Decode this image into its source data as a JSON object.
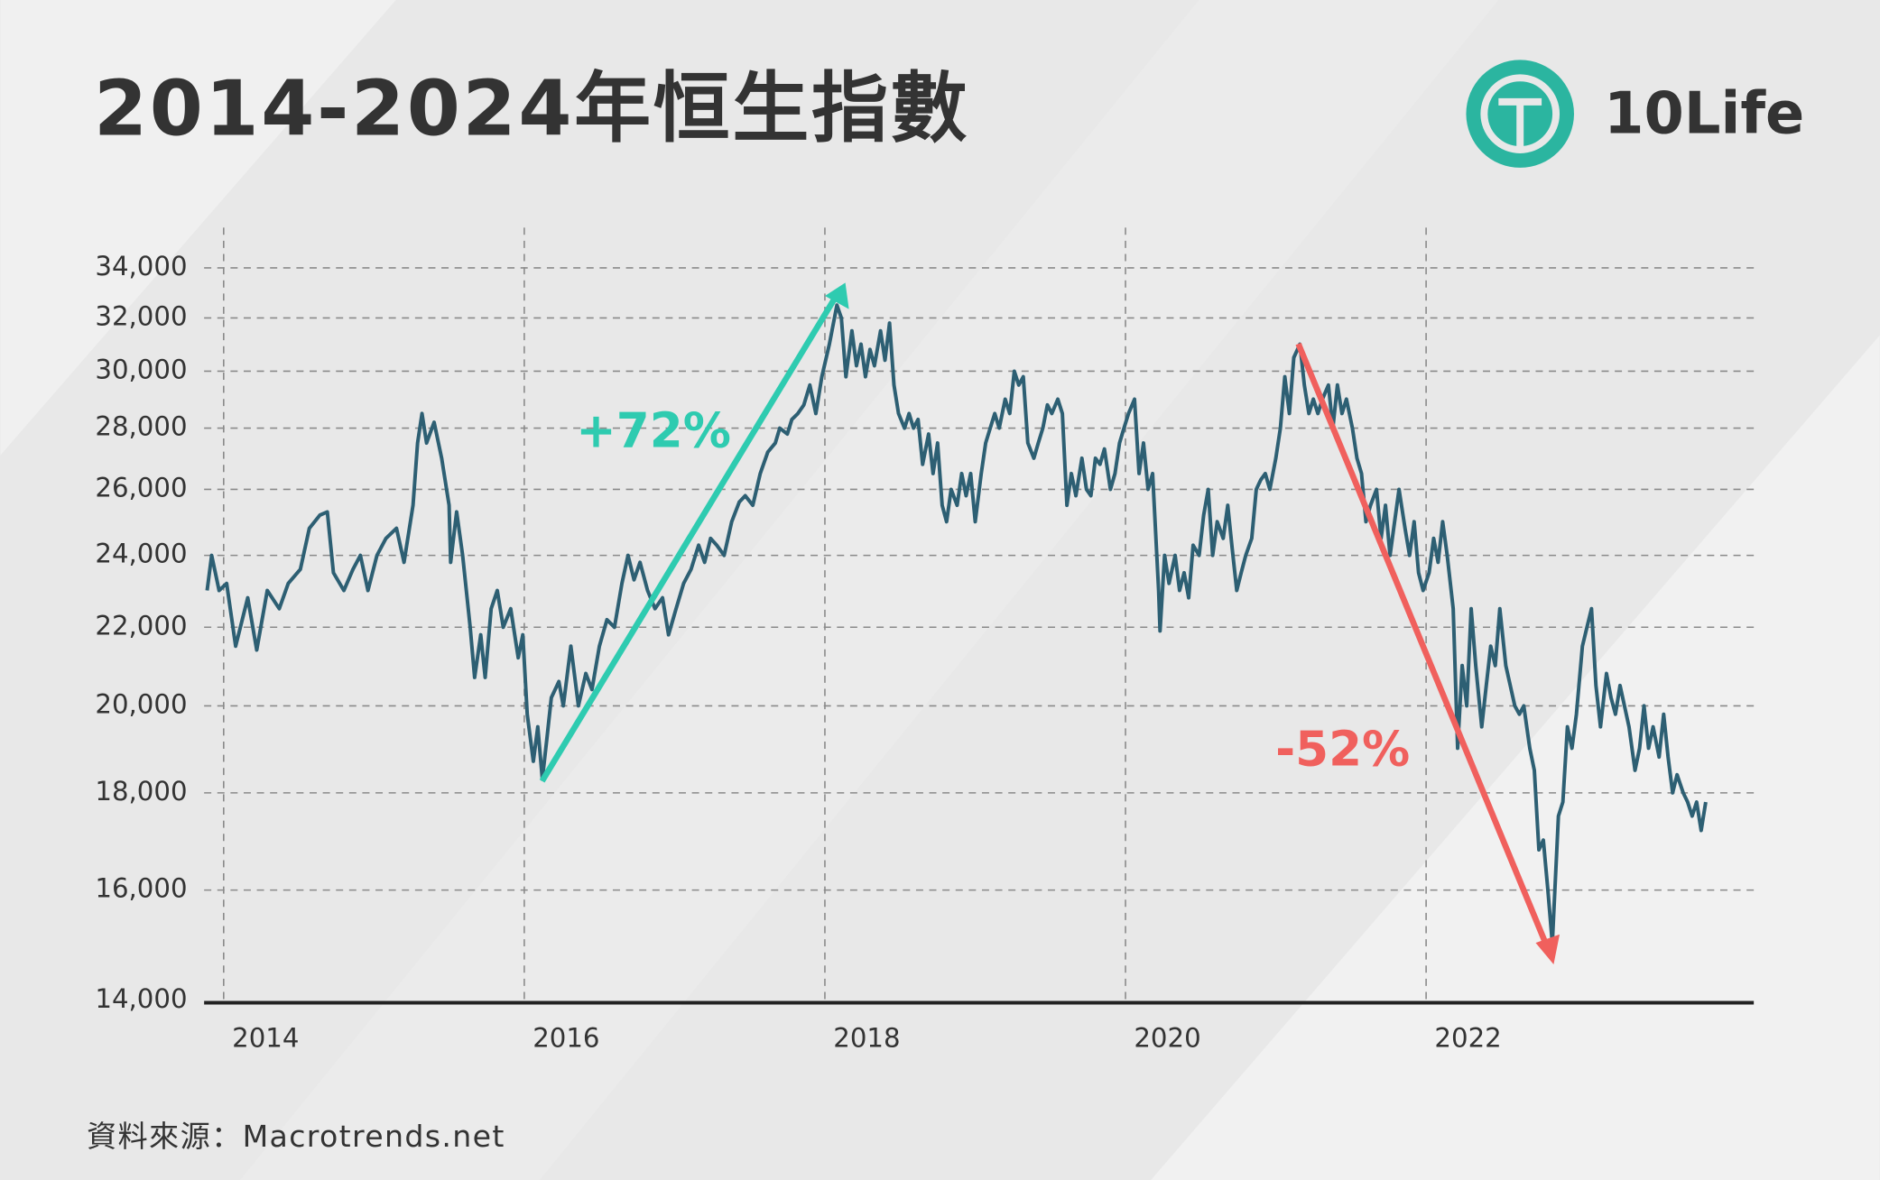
{
  "chart_data": {
    "type": "line",
    "title": "2014-2024年恒生指數",
    "logo": "10Life",
    "source": "資料來源：Macrotrends.net",
    "annotations": [
      {
        "text": "+72%",
        "color": "#2ecbb0"
      },
      {
        "text": "-52%",
        "color": "#f0605d"
      }
    ],
    "log_scale": true,
    "grid": true,
    "xlim": [
      2013.87,
      2024.18
    ],
    "xticks": [
      2014,
      2016,
      2018,
      2020,
      2022
    ],
    "ylim": [
      14000,
      35700
    ],
    "yticks": [
      {
        "value": 14000,
        "label": "14,000"
      },
      {
        "value": 16000,
        "label": "16,000"
      },
      {
        "value": 18000,
        "label": "18,000"
      },
      {
        "value": 20000,
        "label": "20,000"
      },
      {
        "value": 22000,
        "label": "22,000"
      },
      {
        "value": 24000,
        "label": "24,000"
      },
      {
        "value": 26000,
        "label": "26,000"
      },
      {
        "value": 28000,
        "label": "28,000"
      },
      {
        "value": 30000,
        "label": "30,000"
      },
      {
        "value": 32000,
        "label": "32,000"
      },
      {
        "value": 34000,
        "label": "34,000"
      }
    ],
    "series": [
      {
        "color": "#2d5f73",
        "x": [
          2013.89,
          2013.92,
          2013.97,
          2014.02,
          2014.08,
          2014.16,
          2014.22,
          2014.29,
          2014.37,
          2014.43,
          2014.51,
          2014.57,
          2014.64,
          2014.69,
          2014.73,
          2014.8,
          2014.86,
          2014.91,
          2014.96,
          2015.02,
          2015.08,
          2015.15,
          2015.2,
          2015.26,
          2015.29,
          2015.32,
          2015.35,
          2015.4,
          2015.45,
          2015.5,
          2015.51,
          2015.55,
          2015.59,
          2015.64,
          2015.67,
          2015.71,
          2015.74,
          2015.78,
          2015.82,
          2015.86,
          2015.91,
          2015.96,
          2015.99,
          2016.02,
          2016.06,
          2016.09,
          2016.12,
          2016.15,
          2016.18,
          2016.23,
          2016.26,
          2016.31,
          2016.36,
          2016.41,
          2016.45,
          2016.5,
          2016.55,
          2016.6,
          2016.65,
          2016.69,
          2016.73,
          2016.77,
          2016.82,
          2016.87,
          2016.92,
          2016.96,
          2017.01,
          2017.06,
          2017.11,
          2017.16,
          2017.2,
          2017.24,
          2017.28,
          2017.33,
          2017.38,
          2017.43,
          2017.47,
          2017.52,
          2017.57,
          2017.62,
          2017.67,
          2017.7,
          2017.75,
          2017.78,
          2017.82,
          2017.86,
          2017.9,
          2017.94,
          2017.98,
          2018.03,
          2018.08,
          2018.11,
          2018.14,
          2018.18,
          2018.21,
          2018.24,
          2018.27,
          2018.3,
          2018.33,
          2018.37,
          2018.4,
          2018.43,
          2018.46,
          2018.49,
          2018.53,
          2018.56,
          2018.59,
          2018.62,
          2018.65,
          2018.69,
          2018.72,
          2018.75,
          2018.78,
          2018.81,
          2018.84,
          2018.88,
          2018.91,
          2018.94,
          2018.97,
          2019.0,
          2019.04,
          2019.07,
          2019.1,
          2019.13,
          2019.16,
          2019.2,
          2019.23,
          2019.26,
          2019.29,
          2019.32,
          2019.35,
          2019.39,
          2019.42,
          2019.45,
          2019.48,
          2019.51,
          2019.55,
          2019.58,
          2019.61,
          2019.64,
          2019.67,
          2019.71,
          2019.74,
          2019.77,
          2019.8,
          2019.83,
          2019.86,
          2019.9,
          2019.93,
          2019.96,
          2019.99,
          2020.02,
          2020.06,
          2020.09,
          2020.12,
          2020.15,
          2020.18,
          2020.22,
          2020.23,
          2020.26,
          2020.29,
          2020.33,
          2020.36,
          2020.39,
          2020.42,
          2020.45,
          2020.49,
          2020.52,
          2020.55,
          2020.58,
          2020.61,
          2020.65,
          2020.68,
          2020.71,
          2020.74,
          2020.77,
          2020.8,
          2020.84,
          2020.87,
          2020.9,
          2020.93,
          2020.96,
          2021.0,
          2021.03,
          2021.06,
          2021.09,
          2021.12,
          2021.16,
          2021.19,
          2021.22,
          2021.25,
          2021.28,
          2021.31,
          2021.35,
          2021.38,
          2021.41,
          2021.44,
          2021.47,
          2021.51,
          2021.54,
          2021.57,
          2021.6,
          2021.63,
          2021.67,
          2021.7,
          2021.73,
          2021.76,
          2021.79,
          2021.82,
          2021.86,
          2021.89,
          2021.92,
          2021.95,
          2021.98,
          2022.02,
          2022.05,
          2022.08,
          2022.11,
          2022.14,
          2022.18,
          2022.21,
          2022.24,
          2022.27,
          2022.3,
          2022.33,
          2022.37,
          2022.4,
          2022.43,
          2022.46,
          2022.49,
          2022.53,
          2022.56,
          2022.59,
          2022.62,
          2022.65,
          2022.69,
          2022.72,
          2022.75,
          2022.78,
          2022.81,
          2022.84,
          2022.88,
          2022.91,
          2022.94,
          2022.97,
          2023.0,
          2023.04,
          2023.07,
          2023.1,
          2023.13,
          2023.16,
          2023.2,
          2023.23,
          2023.26,
          2023.29,
          2023.32,
          2023.35,
          2023.39,
          2023.42,
          2023.45,
          2023.48,
          2023.51,
          2023.55,
          2023.58,
          2023.61,
          2023.64,
          2023.67,
          2023.71,
          2023.74,
          2023.77,
          2023.8,
          2023.83,
          2023.86
        ],
        "values": [
          23000,
          24000,
          23000,
          23200,
          21500,
          22800,
          21400,
          23000,
          22500,
          23200,
          23600,
          24800,
          25200,
          25300,
          23500,
          23000,
          23600,
          24000,
          23000,
          24000,
          24500,
          24800,
          23800,
          25500,
          27500,
          28500,
          27500,
          28200,
          27000,
          25500,
          23800,
          25300,
          24000,
          22000,
          20700,
          21800,
          20700,
          22500,
          23000,
          22000,
          22500,
          21200,
          21800,
          19800,
          18700,
          19500,
          18300,
          19200,
          20200,
          20600,
          20000,
          21500,
          20000,
          20800,
          20400,
          21500,
          22200,
          22000,
          23200,
          24000,
          23300,
          23800,
          23000,
          22500,
          22800,
          21800,
          22500,
          23200,
          23600,
          24300,
          23800,
          24500,
          24300,
          24000,
          25000,
          25600,
          25800,
          25500,
          26500,
          27200,
          27500,
          28000,
          27800,
          28300,
          28500,
          28800,
          29500,
          28500,
          29800,
          31000,
          32500,
          32000,
          29800,
          31500,
          30200,
          31000,
          29800,
          30800,
          30200,
          31500,
          30400,
          31800,
          29500,
          28500,
          28000,
          28500,
          28000,
          28300,
          26800,
          27800,
          26500,
          27500,
          25500,
          25000,
          26000,
          25500,
          26500,
          25800,
          26500,
          25000,
          26500,
          27500,
          28000,
          28500,
          28000,
          29000,
          28500,
          30000,
          29500,
          29800,
          27500,
          27000,
          27500,
          28000,
          28800,
          28500,
          29000,
          28500,
          25500,
          26500,
          25800,
          27000,
          26000,
          25800,
          27000,
          26800,
          27300,
          26000,
          26500,
          27500,
          28000,
          28500,
          29000,
          26500,
          27500,
          26000,
          26500,
          23000,
          21900,
          24000,
          23200,
          24000,
          23000,
          23500,
          22800,
          24300,
          24000,
          25200,
          26000,
          24000,
          25000,
          24500,
          25500,
          24200,
          23000,
          23500,
          24000,
          24500,
          26000,
          26300,
          26500,
          26000,
          27000,
          28000,
          29800,
          28500,
          30500,
          31000,
          29500,
          28500,
          29000,
          28500,
          29000,
          29500,
          28000,
          29500,
          28500,
          29000,
          28000,
          27000,
          26500,
          25000,
          25500,
          26000,
          24500,
          25500,
          24000,
          25000,
          26000,
          24800,
          24000,
          25000,
          23500,
          23000,
          23500,
          24500,
          23800,
          25000,
          24000,
          22500,
          19000,
          21000,
          20000,
          22500,
          21000,
          19500,
          20500,
          21500,
          21000,
          22500,
          21000,
          20500,
          20000,
          19800,
          20000,
          19000,
          18500,
          16800,
          17000,
          16000,
          15000,
          17500,
          17800,
          19500,
          19000,
          19800,
          21500,
          22000,
          22500,
          20500,
          19500,
          20800,
          20200,
          19800,
          20500,
          20000,
          19500,
          18500,
          19000,
          20000,
          19000,
          19500,
          18800,
          19800,
          18800,
          18000,
          18400,
          18000,
          17800,
          17500,
          17800,
          17200,
          17800
        ]
      }
    ]
  }
}
